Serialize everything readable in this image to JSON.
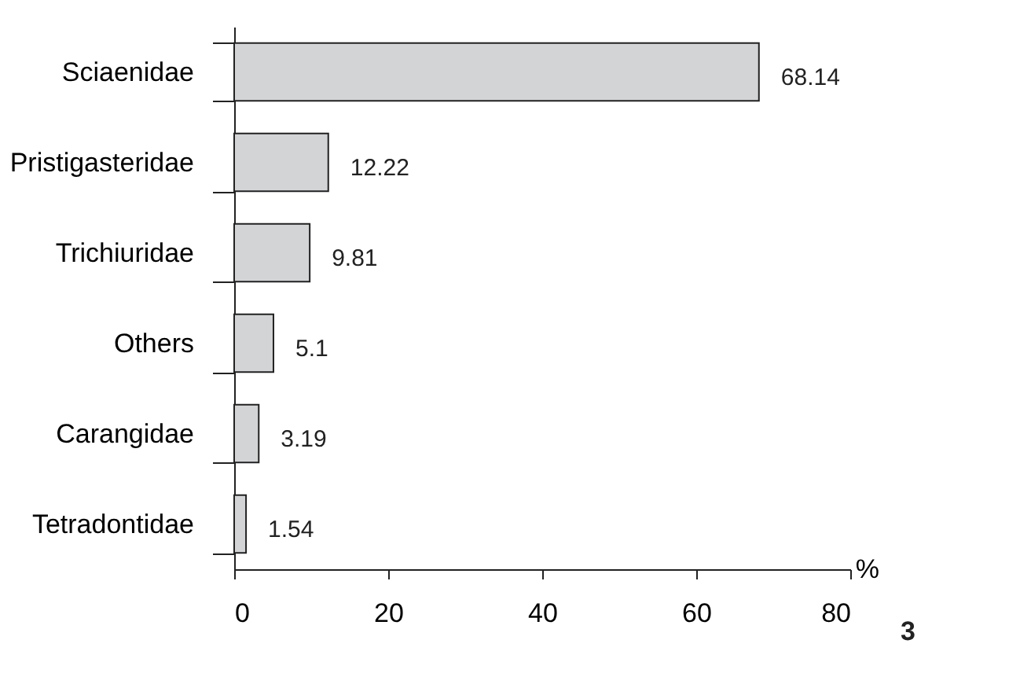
{
  "chart_data": {
    "type": "bar",
    "orientation": "horizontal",
    "categories": [
      "Sciaenidae",
      "Pristigasteridae",
      "Trichiuridae",
      "Others",
      "Carangidae",
      "Tetradontidae"
    ],
    "values": [
      68.14,
      12.22,
      9.81,
      5.1,
      3.19,
      1.54
    ],
    "color": "#d3d4d6",
    "xlim": [
      0,
      80
    ],
    "xticks": [
      0,
      20,
      40,
      60,
      80
    ],
    "xlabel": "%",
    "data_labels": true,
    "grid": false,
    "annotations": [
      "3"
    ]
  }
}
